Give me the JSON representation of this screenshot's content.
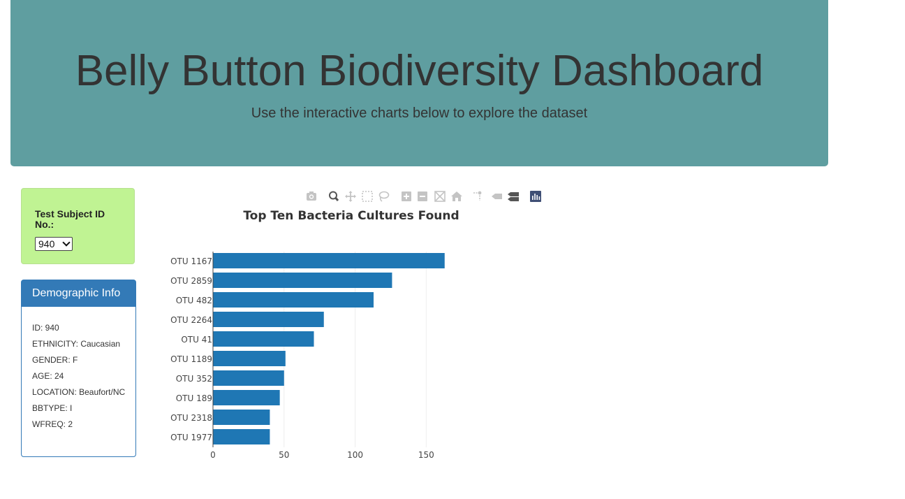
{
  "header": {
    "title": "Belly Button Biodiversity Dashboard",
    "subtitle": "Use the interactive charts below to explore the dataset"
  },
  "selector": {
    "label": "Test Subject ID No.:",
    "value": "940"
  },
  "demographics": {
    "heading": "Demographic Info",
    "rows": [
      "ID: 940",
      "ETHNICITY: Caucasian",
      "GENDER: F",
      "AGE: 24",
      "LOCATION: Beaufort/NC",
      "BBTYPE: I",
      "WFREQ: 2"
    ]
  },
  "toolbar": {
    "icons": [
      "camera-icon",
      "zoom-icon",
      "pan-icon",
      "box-select-icon",
      "lasso-select-icon",
      "zoom-in-icon",
      "zoom-out-icon",
      "autoscale-icon",
      "reset-axes-icon",
      "spike-lines-icon",
      "hover-closest-icon",
      "hover-compare-icon",
      "plotly-logo-icon"
    ]
  },
  "chart_data": {
    "type": "bar",
    "orientation": "horizontal",
    "title": "Top Ten Bacteria Cultures Found",
    "categories": [
      "OTU 1167",
      "OTU 2859",
      "OTU 482",
      "OTU 2264",
      "OTU 41",
      "OTU 1189",
      "OTU 352",
      "OTU 189",
      "OTU 2318",
      "OTU 1977"
    ],
    "values": [
      163,
      126,
      113,
      78,
      71,
      51,
      50,
      47,
      40,
      40
    ],
    "xlim": [
      0,
      170
    ],
    "xticks": [
      0,
      50,
      100,
      150
    ],
    "grid": true,
    "bar_color": "#1f77b4"
  }
}
